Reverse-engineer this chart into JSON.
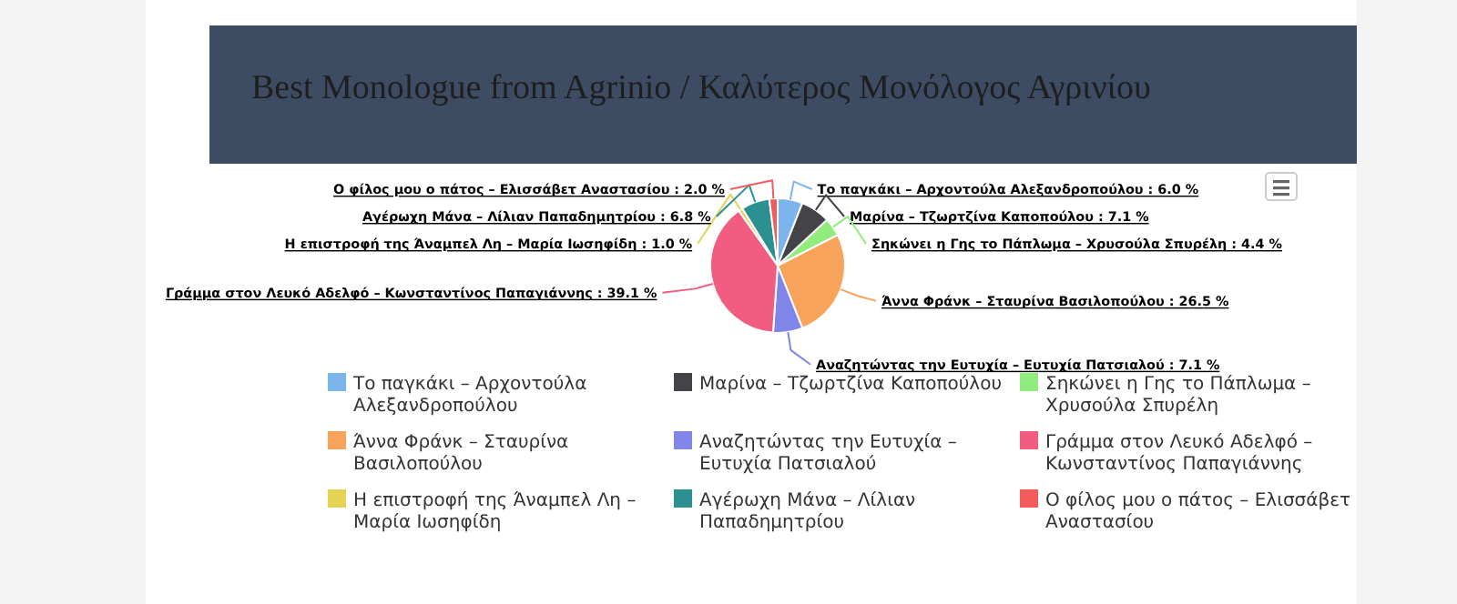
{
  "chart_data": {
    "type": "pie",
    "title": "Best Monologue from Agrinio / Καλύτερος Μονόλογος Αγρινίου",
    "categories": [
      "Το παγκάκι – Αρχοντούλα Αλεξανδροπούλου",
      "Μαρίνα – Τζωρτζίνα Καποπούλου",
      "Σηκώνει η Γης το Πάπλωμα – Χρυσούλα Σπυρέλη",
      "Άννα Φράνκ – Σταυρίνα Βασιλοπούλου",
      "Αναζητώντας την Ευτυχία – Ευτυχία Πατσιαλού",
      "Γράμμα στον Λευκό Αδελφό – Κωνσταντίνος Παπαγιάννης",
      "Η επιστροφή της Άναμπελ Λη – Μαρία Ιωσηφίδη",
      "Αγέρωχη Μάνα – Λίλιαν Παπαδημητρίου",
      "Ο φίλος μου ο πάτος – Ελισσάβετ Αναστασίου"
    ],
    "values": [
      6.0,
      7.1,
      4.4,
      26.5,
      7.1,
      39.1,
      1.0,
      6.8,
      2.0
    ],
    "value_labels": [
      ": 6.0 %",
      ": 7.1 %",
      ": 4.4 %",
      ": 26.5 %",
      ": 7.1 %",
      ": 39.1 %",
      ": 1.0 %",
      ": 6.8 %",
      ": 2.0 %"
    ],
    "colors": [
      "#7cb5ec",
      "#434348",
      "#90ed7d",
      "#f7a35c",
      "#8085e9",
      "#f15c80",
      "#e4d354",
      "#2b908f",
      "#f45b5b"
    ],
    "legend": "bottom"
  }
}
